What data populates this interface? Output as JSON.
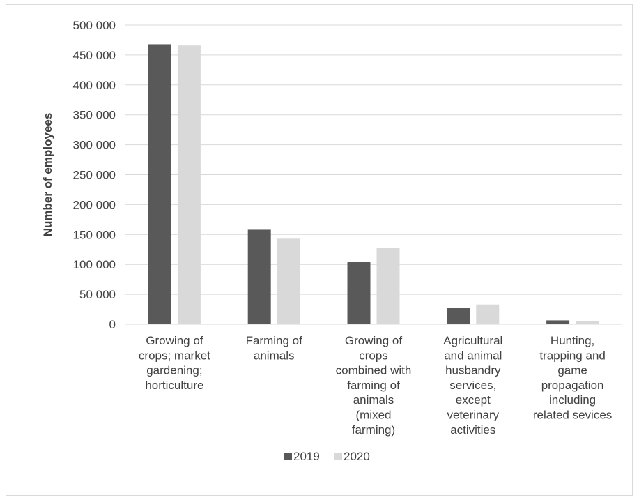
{
  "chart_data": {
    "type": "bar",
    "ylabel": "Number of employees",
    "ylim": [
      0,
      500000
    ],
    "yticks": [
      0,
      50000,
      100000,
      150000,
      200000,
      250000,
      300000,
      350000,
      400000,
      450000,
      500000
    ],
    "ytick_labels": [
      "0",
      "50 000",
      "100 000",
      "150 000",
      "200 000",
      "250 000",
      "300 000",
      "350 000",
      "400 000",
      "450 000",
      "500 000"
    ],
    "grid": true,
    "legend_position": "bottom",
    "categories": [
      [
        "Growing of",
        "crops; market",
        "gardening;",
        "horticulture"
      ],
      [
        "Farming of",
        "animals"
      ],
      [
        "Growing of",
        "crops",
        "combined with",
        "farming of",
        "animals",
        "(mixed",
        "farming)"
      ],
      [
        "Agricultural",
        "and animal",
        "husbandry",
        "services,",
        "except",
        "veterinary",
        "activities"
      ],
      [
        "Hunting,",
        "trapping and",
        "game",
        "propagation",
        "including",
        "related sevices"
      ]
    ],
    "series": [
      {
        "name": "2019",
        "color": "#595959",
        "values": [
          468000,
          158000,
          104000,
          27000,
          6500
        ]
      },
      {
        "name": "2020",
        "color": "#d9d9d9",
        "values": [
          466000,
          143000,
          128000,
          33000,
          5500
        ]
      }
    ]
  }
}
